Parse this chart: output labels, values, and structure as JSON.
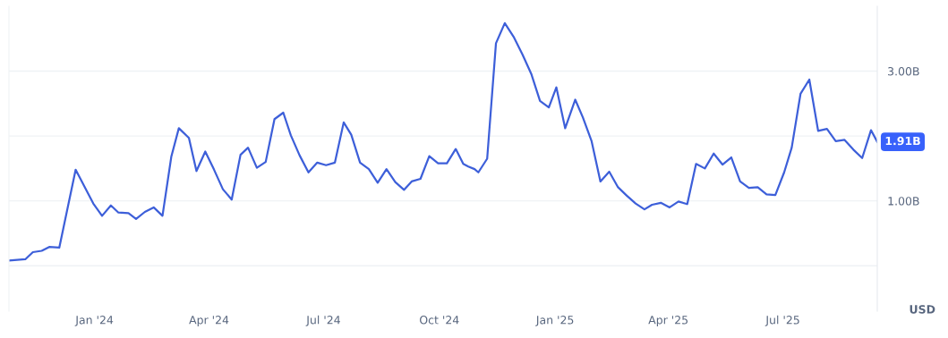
{
  "chart_data": {
    "type": "line",
    "xlim": [
      "2023-10-25",
      "2025-09-14"
    ],
    "ylim": [
      -0.7,
      4.0
    ],
    "xticks": [
      {
        "value": "2024-01-01",
        "label": "Jan '24"
      },
      {
        "value": "2024-04-01",
        "label": "Apr '24"
      },
      {
        "value": "2024-07-01",
        "label": "Jul '24"
      },
      {
        "value": "2024-10-01",
        "label": "Oct '24"
      },
      {
        "value": "2025-01-01",
        "label": "Jan '25"
      },
      {
        "value": "2025-04-01",
        "label": "Apr '25"
      },
      {
        "value": "2025-07-01",
        "label": "Jul '25"
      }
    ],
    "yticks": [
      {
        "value": 0,
        "label": null
      },
      {
        "value": 1,
        "label": "1.00B"
      },
      {
        "value": 2,
        "label": null
      },
      {
        "value": 3,
        "label": "3.00B"
      }
    ],
    "grid": "y",
    "legend": false,
    "marker": "none",
    "line_style": "solid",
    "annotations": [
      {
        "text": "1.91B",
        "x": "2025-09-14",
        "y": 1.91
      },
      "USD"
    ],
    "x": [
      "2023-10-25",
      "2023-11-07",
      "2023-11-13",
      "2023-11-20",
      "2023-11-26",
      "2023-12-04",
      "2023-12-17",
      "2023-12-31",
      "2024-01-07",
      "2024-01-14",
      "2024-01-20",
      "2024-01-28",
      "2024-02-03",
      "2024-02-10",
      "2024-02-17",
      "2024-02-24",
      "2024-03-02",
      "2024-03-08",
      "2024-03-16",
      "2024-03-22",
      "2024-03-29",
      "2024-04-05",
      "2024-04-12",
      "2024-04-19",
      "2024-04-26",
      "2024-05-02",
      "2024-05-09",
      "2024-05-16",
      "2024-05-23",
      "2024-05-30",
      "2024-06-05",
      "2024-06-12",
      "2024-06-19",
      "2024-06-26",
      "2024-07-03",
      "2024-07-10",
      "2024-07-17",
      "2024-07-23",
      "2024-07-30",
      "2024-08-06",
      "2024-08-13",
      "2024-08-20",
      "2024-08-27",
      "2024-09-03",
      "2024-09-09",
      "2024-09-16",
      "2024-09-23",
      "2024-09-30",
      "2024-10-07",
      "2024-10-14",
      "2024-10-20",
      "2024-10-24",
      "2024-10-29",
      "2024-11-01",
      "2024-11-08",
      "2024-11-15",
      "2024-11-22",
      "2024-11-29",
      "2024-12-06",
      "2024-12-13",
      "2024-12-20",
      "2024-12-27",
      "2025-01-02",
      "2025-01-09",
      "2025-01-17",
      "2025-01-23",
      "2025-01-30",
      "2025-02-06",
      "2025-02-13",
      "2025-02-20",
      "2025-02-27",
      "2025-03-06",
      "2025-03-13",
      "2025-03-19",
      "2025-03-26",
      "2025-04-02",
      "2025-04-09",
      "2025-04-16",
      "2025-04-23",
      "2025-04-30",
      "2025-05-07",
      "2025-05-14",
      "2025-05-21",
      "2025-05-28",
      "2025-06-04",
      "2025-06-11",
      "2025-06-18",
      "2025-06-25",
      "2025-07-02",
      "2025-07-08",
      "2025-07-15",
      "2025-07-22",
      "2025-07-29",
      "2025-08-05",
      "2025-08-12",
      "2025-08-19",
      "2025-08-26",
      "2025-09-02",
      "2025-09-09",
      "2025-09-14"
    ],
    "series": [
      {
        "color": "#3d5fd9",
        "values": [
          0.08,
          0.1,
          0.21,
          0.23,
          0.29,
          0.28,
          1.48,
          0.96,
          0.77,
          0.93,
          0.82,
          0.81,
          0.72,
          0.83,
          0.9,
          0.77,
          1.68,
          2.12,
          1.97,
          1.46,
          1.76,
          1.48,
          1.18,
          1.02,
          1.71,
          1.82,
          1.51,
          1.6,
          2.26,
          2.36,
          2.01,
          1.7,
          1.44,
          1.59,
          1.55,
          1.59,
          2.21,
          2.02,
          1.59,
          1.49,
          1.28,
          1.49,
          1.29,
          1.17,
          1.3,
          1.34,
          1.69,
          1.58,
          1.58,
          1.8,
          1.57,
          1.53,
          1.49,
          1.44,
          1.65,
          3.43,
          3.74,
          3.53,
          3.26,
          2.96,
          2.54,
          2.44,
          2.75,
          2.12,
          2.56,
          2.29,
          1.92,
          1.3,
          1.45,
          1.21,
          1.08,
          0.96,
          0.87,
          0.94,
          0.97,
          0.9,
          0.99,
          0.95,
          1.57,
          1.5,
          1.73,
          1.56,
          1.67,
          1.3,
          1.2,
          1.21,
          1.1,
          1.09,
          1.44,
          1.82,
          2.65,
          2.87,
          2.08,
          2.11,
          1.92,
          1.94,
          1.79,
          1.66,
          2.09,
          1.91
        ]
      }
    ]
  }
}
